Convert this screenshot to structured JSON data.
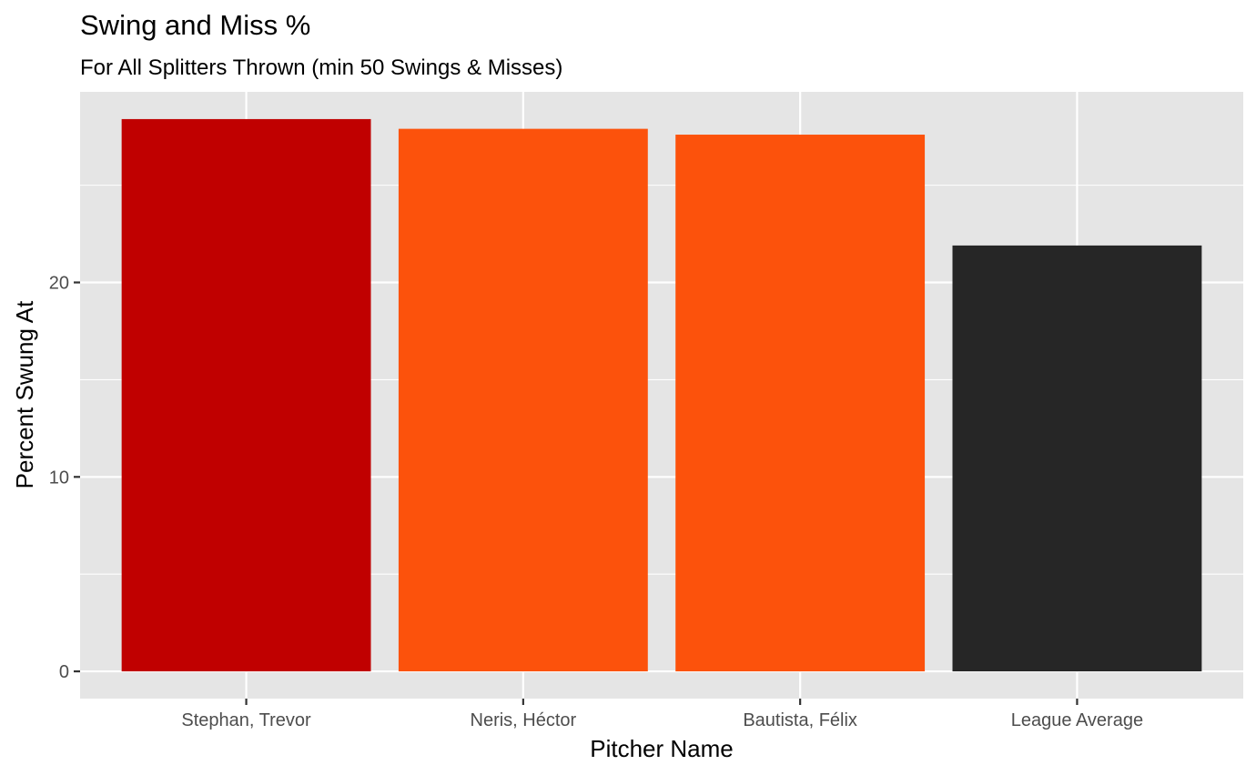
{
  "chart_data": {
    "type": "bar",
    "title": "Swing and Miss %",
    "subtitle": "For All Splitters Thrown (min 50 Swings & Misses)",
    "xlabel": "Pitcher Name",
    "ylabel": "Percent Swung At",
    "categories": [
      "Stephan, Trevor",
      "Neris, Héctor",
      "Bautista, Félix",
      "League Average"
    ],
    "values": [
      28.4,
      27.9,
      27.6,
      21.9
    ],
    "colors": [
      "#C00000",
      "#FC520C",
      "#FC520C",
      "#262626"
    ],
    "ylim": [
      -1.4,
      29.8
    ],
    "y_ticks": [
      0,
      10,
      20
    ],
    "y_tick_labels": [
      "0",
      "10",
      "20"
    ],
    "y_minor_ticks": [
      5,
      15,
      25
    ],
    "grid": true,
    "legend": "none",
    "panel_background": "#E5E5E5",
    "grid_color": "#FFFFFF"
  }
}
